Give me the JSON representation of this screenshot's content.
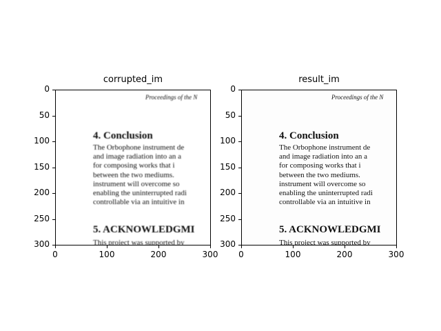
{
  "chart_data": [
    {
      "type": "image",
      "title": "corrupted_im",
      "xlim": [
        0,
        300
      ],
      "ylim": [
        300,
        0
      ],
      "xticks": [
        "0",
        "100",
        "200",
        "300"
      ],
      "yticks": [
        "0",
        "50",
        "100",
        "150",
        "200",
        "250",
        "300"
      ],
      "style": "blurred"
    },
    {
      "type": "image",
      "title": "result_im",
      "xlim": [
        0,
        300
      ],
      "ylim": [
        300,
        0
      ],
      "xticks": [
        "0",
        "100",
        "200",
        "300"
      ],
      "yticks": [
        "0",
        "50",
        "100",
        "150",
        "200",
        "250",
        "300"
      ],
      "style": "restored"
    }
  ],
  "document_text": {
    "header": "Proceedings of the N",
    "heading1": "4.  Conclusion",
    "lines": [
      "The Orbophone instrument de",
      "and image radiation into an a",
      "for composing works that i",
      "between the two mediums.",
      "instrument will overcome so",
      "enabling the uninterrupted radi",
      "controllable via an intuitive in"
    ],
    "heading2": "5.  ACKNOWLEDGMI",
    "last_line": "This project was supported by"
  }
}
